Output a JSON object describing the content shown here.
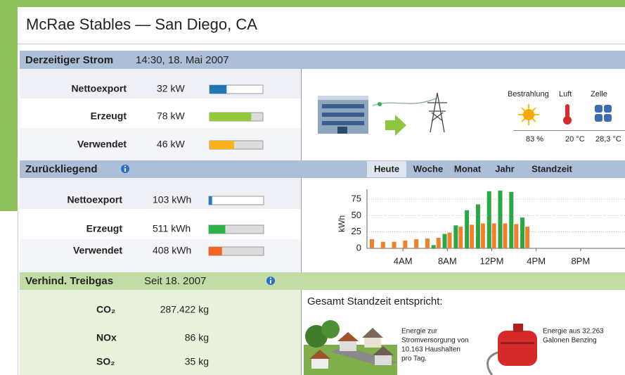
{
  "header": {
    "title": "McRae Stables — San Diego, CA"
  },
  "current": {
    "title": "Derzeitiger Strom",
    "timestamp": "14:30, 18. Mai 2007",
    "rows": [
      {
        "label": "Nettoexport",
        "value": 32,
        "value_label": "32 kW",
        "color": "#1f78b4"
      },
      {
        "label": "Erzeugt",
        "value": 78,
        "value_label": "78 kW",
        "color": "#95c93d"
      },
      {
        "label": "Verwendet",
        "value": 46,
        "value_label": "46 kW",
        "color": "#f9b21e"
      }
    ],
    "weather": {
      "labels": [
        "Bestrahlung",
        "Luft",
        "Zelle"
      ],
      "values": [
        "83 %",
        "20 °C",
        "28,3 °C"
      ]
    }
  },
  "history": {
    "title": "Zurückliegend",
    "tabs": [
      "Heute",
      "Woche",
      "Monat",
      "Jahr",
      "Standzeit"
    ],
    "selected_tab": 0,
    "rows": [
      {
        "label": "Nettoexport",
        "value": 103,
        "value_label": "103 kWh",
        "color": "#2a7ab8"
      },
      {
        "label": "Erzeugt",
        "value": 511,
        "value_label": "511 kWh",
        "color": "#2db34a"
      },
      {
        "label": "Verwendet",
        "value": 408,
        "value_label": "408 kWh",
        "color": "#f26522"
      }
    ]
  },
  "chart_data": {
    "type": "bar",
    "y_label": "kWh",
    "x": [
      1,
      2,
      3,
      4,
      5,
      6,
      7,
      8,
      9,
      10,
      11,
      12,
      13,
      14,
      15
    ],
    "series": [
      {
        "color": "#2aa845",
        "values": [
          null,
          null,
          null,
          null,
          null,
          null,
          5,
          22,
          35,
          58,
          67,
          87,
          88,
          86,
          47
        ]
      },
      {
        "color": "#f0802c",
        "values": [
          14,
          10,
          10,
          12,
          14,
          15,
          16,
          24,
          33,
          36,
          38,
          38,
          38,
          37,
          33
        ]
      }
    ],
    "xlim": [
      0,
      24
    ],
    "xticks": [
      {
        "value": 4,
        "label": "4AM"
      },
      {
        "value": 8,
        "label": "8AM"
      },
      {
        "value": 12,
        "label": "12PM"
      },
      {
        "value": 16,
        "label": "4PM"
      },
      {
        "value": 20,
        "label": "8PM"
      }
    ],
    "ylim": [
      0,
      90
    ],
    "yticks": [
      0,
      25,
      50,
      75
    ],
    "grid": true
  },
  "emissions": {
    "title": "Verhind. Treibgas",
    "since": "Seit 18. 2007",
    "rows": [
      {
        "label": "CO₂",
        "value": "287.422 kg"
      },
      {
        "label": "NOx",
        "value": "86 kg"
      },
      {
        "label": "SO₂",
        "value": "35 kg"
      }
    ],
    "equivalent": {
      "title": "Gesamt Standzeit entspricht:",
      "households": [
        "Energie zur",
        "Stromversorgung von",
        "10.163 Haushalten",
        "pro Tag."
      ],
      "gasoline": [
        "Energie aus 32.263",
        "Galonen Benzing"
      ]
    }
  }
}
